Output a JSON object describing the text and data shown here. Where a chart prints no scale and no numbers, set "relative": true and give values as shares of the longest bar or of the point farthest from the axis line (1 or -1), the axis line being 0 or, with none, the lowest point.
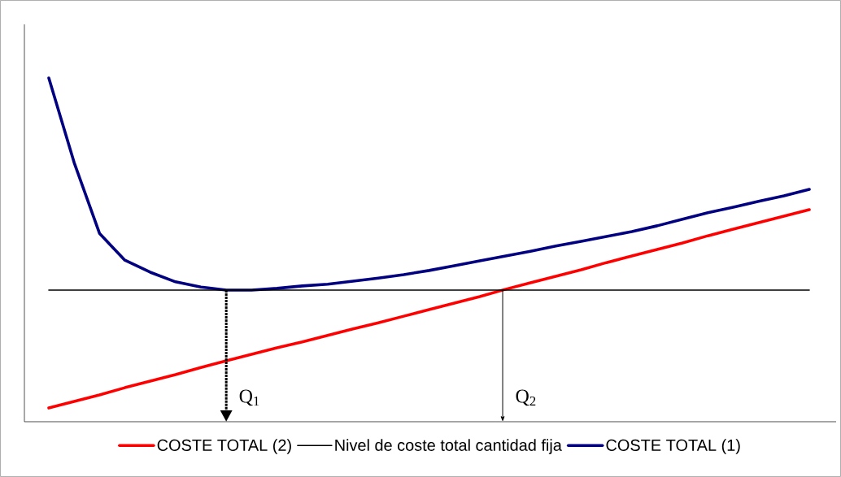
{
  "chart_data": {
    "type": "line",
    "relative": true,
    "legend": "bottom",
    "categories": [
      null,
      null,
      null,
      null,
      null,
      null,
      null,
      null,
      null,
      null,
      null,
      null,
      null,
      null,
      null,
      null,
      null,
      null,
      null,
      null,
      null,
      null,
      null,
      null,
      null,
      null,
      null,
      null,
      null,
      null,
      null
    ],
    "series": [
      {
        "name": "COSTE TOTAL (2)",
        "color": "#ff0000",
        "values": [
          0.04,
          0.059,
          0.078,
          0.099,
          0.118,
          0.137,
          0.158,
          0.177,
          0.196,
          0.215,
          0.232,
          0.251,
          0.27,
          0.288,
          0.307,
          0.326,
          0.345,
          0.364,
          0.385,
          0.404,
          0.423,
          0.442,
          0.463,
          0.482,
          0.501,
          0.52,
          0.541,
          0.56,
          0.579,
          0.598,
          0.617
        ]
      },
      {
        "name": "Nivel de coste total cantidad fija",
        "color": "#000000",
        "values": [
          0.383,
          0.383,
          0.383,
          0.383,
          0.383,
          0.383,
          0.383,
          0.383,
          0.383,
          0.383,
          0.383,
          0.383,
          0.383,
          0.383,
          0.383,
          0.383,
          0.383,
          0.383,
          0.383,
          0.383,
          0.383,
          0.383,
          0.383,
          0.383,
          0.383,
          0.383,
          0.383,
          0.383,
          0.383,
          0.383,
          0.383
        ]
      },
      {
        "name": "COSTE TOTAL (1)",
        "color": "#000080",
        "values": [
          1.0,
          0.754,
          0.548,
          0.47,
          0.435,
          0.407,
          0.392,
          0.383,
          0.383,
          0.388,
          0.395,
          0.4,
          0.409,
          0.418,
          0.428,
          0.44,
          0.454,
          0.468,
          0.482,
          0.496,
          0.511,
          0.525,
          0.539,
          0.553,
          0.57,
          0.589,
          0.608,
          0.624,
          0.641,
          0.657,
          0.676
        ]
      }
    ],
    "annotations": [
      "Q$_{1}$",
      "Q$_{2}$"
    ]
  }
}
